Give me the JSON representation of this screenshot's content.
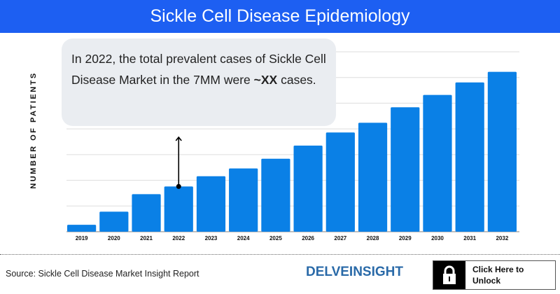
{
  "header": {
    "title": "Sickle Cell Disease Epidemiology"
  },
  "annotation": {
    "text_before": "In 2022, the total prevalent cases of Sickle Cell Disease Market in the 7MM were ",
    "text_bold": "~XX",
    "text_after": " cases.",
    "points_to": "2022"
  },
  "footer": {
    "source": "Source: Sickle Cell Disease Market Insight Report",
    "logo": "DELVEINSIGHT",
    "unlock_label_line1": "Click Here to",
    "unlock_label_line2": "Unlock",
    "unlock_icon": "lock-icon"
  },
  "chart_data": {
    "type": "bar",
    "title": "Sickle Cell Disease Epidemiology",
    "xlabel": "",
    "ylabel": "NUMBER OF PATIENTS",
    "categories": [
      "2019",
      "2020",
      "2021",
      "2022",
      "2023",
      "2024",
      "2025",
      "2026",
      "2027",
      "2028",
      "2029",
      "2030",
      "2031",
      "2032"
    ],
    "values": [
      0.27,
      0.78,
      1.46,
      1.76,
      2.16,
      2.46,
      2.84,
      3.35,
      3.86,
      4.24,
      4.84,
      5.32,
      5.81,
      6.22
    ],
    "ylim": [
      0,
      7
    ],
    "y_tick_labels_shown": false,
    "grid": true,
    "bar_color": "#0a80e6",
    "header_color": "#1d5ff2"
  }
}
